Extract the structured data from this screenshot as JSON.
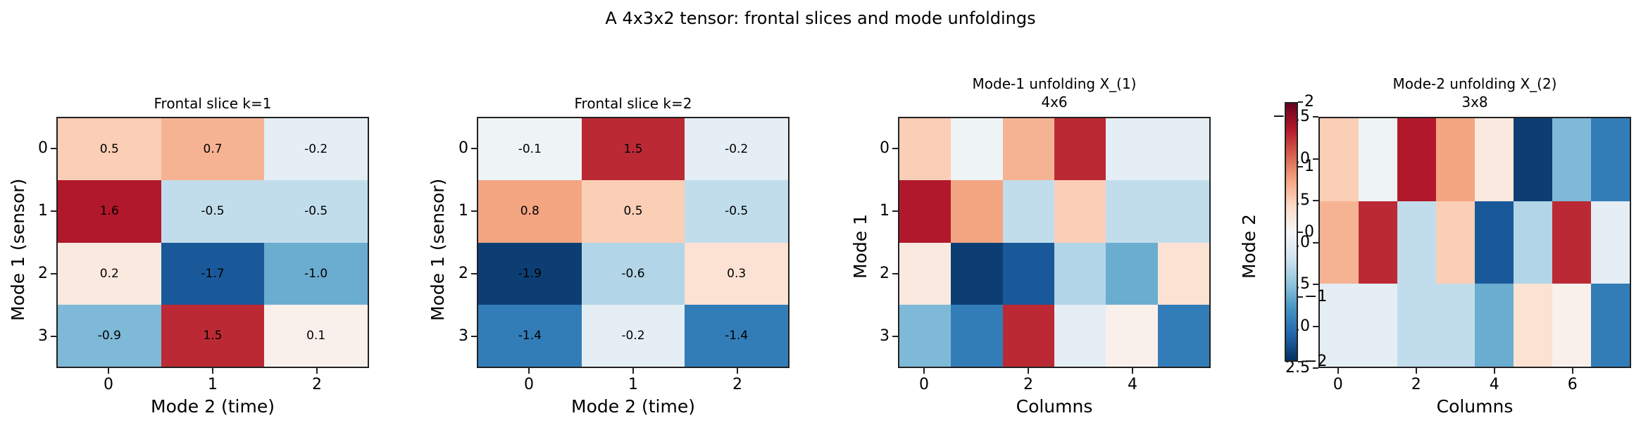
{
  "figure": {
    "suptitle": "A 4x3x2 tensor: frontal slices and mode unfoldings",
    "colormap": "RdBu_r",
    "vmin": -2,
    "vmax": 2
  },
  "panels": [
    {
      "title": "Frontal slice k=1",
      "subtitle": "",
      "xlabel": "Mode 2 (time)",
      "ylabel": "Mode 1 (sensor)",
      "xticks": [
        "0",
        "1",
        "2"
      ],
      "yticks": [
        "0",
        "1",
        "2",
        "3"
      ],
      "show_values": true
    },
    {
      "title": "Frontal slice k=2",
      "subtitle": "",
      "xlabel": "Mode 2 (time)",
      "ylabel": "Mode 1 (sensor)",
      "xticks": [
        "0",
        "1",
        "2"
      ],
      "yticks": [
        "0",
        "1",
        "2",
        "3"
      ],
      "show_values": true
    },
    {
      "title": "Mode-1 unfolding X_(1)",
      "subtitle": "4x6",
      "xlabel": "Columns",
      "ylabel": "Mode 1",
      "xticks": [
        "0",
        "2",
        "4"
      ],
      "yticks": [
        "0",
        "1",
        "2",
        "3"
      ],
      "show_values": false
    },
    {
      "title": "Mode-2 unfolding X_(2)",
      "subtitle": "3x8",
      "xlabel": "Columns",
      "ylabel": "Mode 2",
      "xticks": [
        "0",
        "2",
        "4",
        "6"
      ],
      "yticks": [
        "−0.5",
        "0.0",
        "0.5",
        "1.0",
        "1.5",
        "2.0",
        "2.5"
      ],
      "show_values": false
    }
  ],
  "colorbar": {
    "ticks": [
      "2",
      "1",
      "0",
      "−1",
      "−2"
    ],
    "range": [
      -2,
      2
    ]
  },
  "chart_data": [
    {
      "type": "heatmap",
      "title": "Frontal slice k=1",
      "xlabel": "Mode 2 (time)",
      "ylabel": "Mode 1 (sensor)",
      "x": [
        0,
        1,
        2
      ],
      "y": [
        0,
        1,
        2,
        3
      ],
      "values": [
        [
          0.5,
          0.7,
          -0.2
        ],
        [
          1.6,
          -0.5,
          -0.5
        ],
        [
          0.2,
          -1.7,
          -1.0
        ],
        [
          -0.9,
          1.5,
          0.1
        ]
      ],
      "annotated": true,
      "colormap": "RdBu_r",
      "vmin": -2,
      "vmax": 2
    },
    {
      "type": "heatmap",
      "title": "Frontal slice k=2",
      "xlabel": "Mode 2 (time)",
      "ylabel": "Mode 1 (sensor)",
      "x": [
        0,
        1,
        2
      ],
      "y": [
        0,
        1,
        2,
        3
      ],
      "values": [
        [
          -0.1,
          1.5,
          -0.2
        ],
        [
          0.8,
          0.5,
          -0.5
        ],
        [
          -1.9,
          -0.6,
          0.3
        ],
        [
          -1.4,
          -0.2,
          -1.4
        ]
      ],
      "annotated": true,
      "colormap": "RdBu_r",
      "vmin": -2,
      "vmax": 2
    },
    {
      "type": "heatmap",
      "title": "Mode-1 unfolding X_(1) 4x6",
      "xlabel": "Columns",
      "ylabel": "Mode 1",
      "x": [
        0,
        1,
        2,
        3,
        4,
        5
      ],
      "y": [
        0,
        1,
        2,
        3
      ],
      "xticks": [
        0,
        2,
        4
      ],
      "values": [
        [
          0.5,
          -0.1,
          0.7,
          1.5,
          -0.2,
          -0.2
        ],
        [
          1.6,
          0.8,
          -0.5,
          0.5,
          -0.5,
          -0.5
        ],
        [
          0.2,
          -1.9,
          -1.7,
          -0.6,
          -1.0,
          0.3
        ],
        [
          -0.9,
          -1.4,
          1.5,
          -0.2,
          0.1,
          -1.4
        ]
      ],
      "annotated": false,
      "colormap": "RdBu_r",
      "vmin": -2,
      "vmax": 2
    },
    {
      "type": "heatmap",
      "title": "Mode-2 unfolding X_(2) 3x8",
      "xlabel": "Columns",
      "ylabel": "Mode 2",
      "x": [
        0,
        1,
        2,
        3,
        4,
        5,
        6,
        7
      ],
      "y": [
        0,
        1,
        2
      ],
      "xticks": [
        0,
        2,
        4,
        6
      ],
      "yticks": [
        -0.5,
        0.0,
        0.5,
        1.0,
        1.5,
        2.0,
        2.5
      ],
      "values": [
        [
          0.5,
          -0.1,
          1.6,
          0.8,
          0.2,
          -1.9,
          -0.9,
          -1.4
        ],
        [
          0.7,
          1.5,
          -0.5,
          0.5,
          -1.7,
          -0.6,
          1.5,
          -0.2
        ],
        [
          -0.2,
          -0.2,
          -0.5,
          -0.5,
          -1.0,
          0.3,
          0.1,
          -1.4
        ]
      ],
      "annotated": false,
      "colormap": "RdBu_r",
      "vmin": -2,
      "vmax": 2,
      "colorbar": {
        "ticks": [
          2,
          1,
          0,
          -1,
          -2
        ],
        "range": [
          -2,
          2
        ]
      }
    }
  ]
}
